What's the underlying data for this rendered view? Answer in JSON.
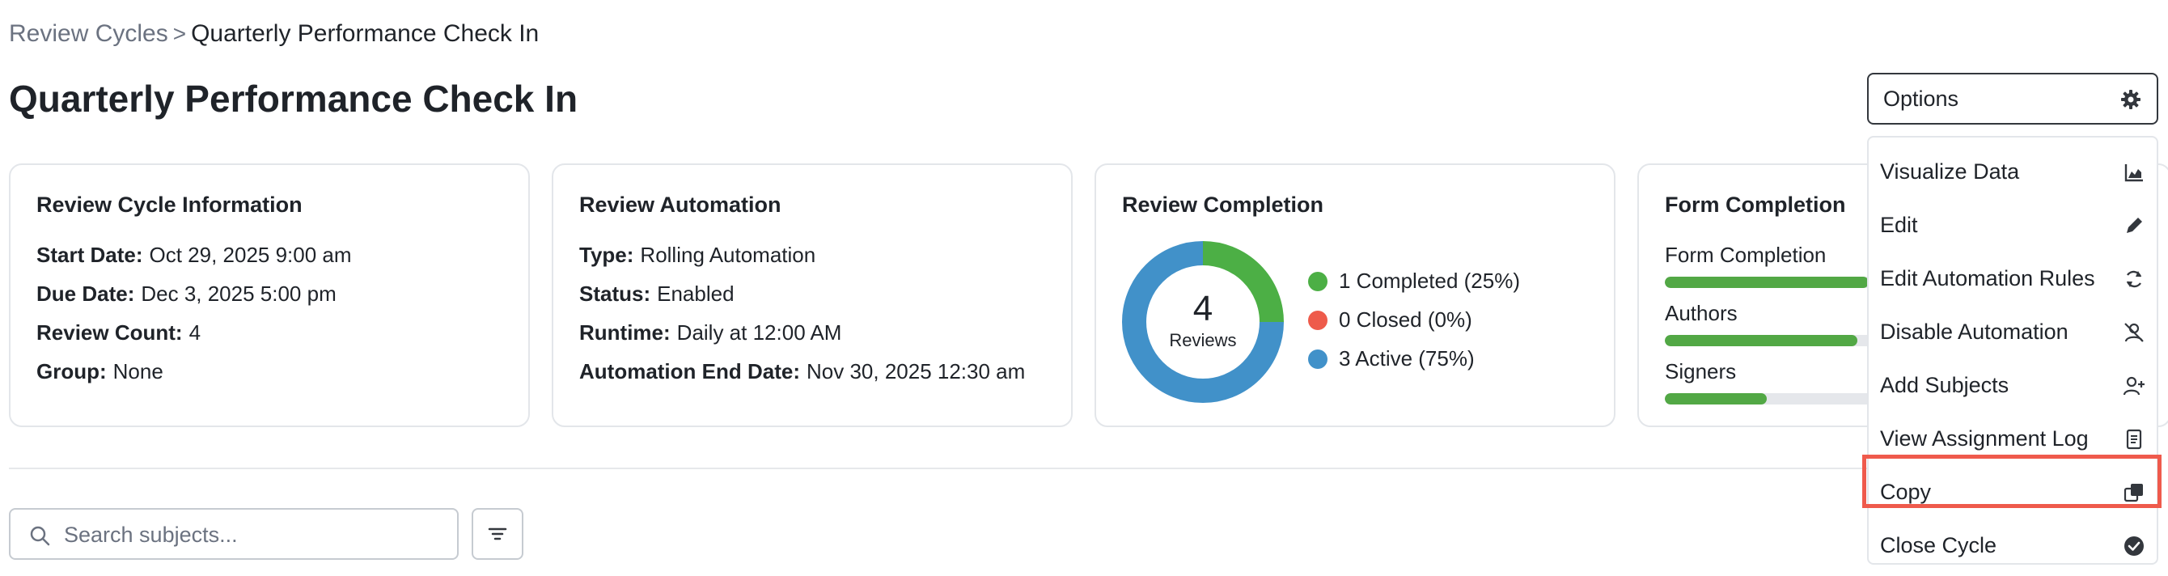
{
  "breadcrumb": {
    "parent": "Review Cycles",
    "separator": ">",
    "current": "Quarterly Performance Check In"
  },
  "page": {
    "title": "Quarterly Performance Check In"
  },
  "cards": {
    "info": {
      "title": "Review Cycle Information",
      "rows": [
        {
          "label": "Start Date:",
          "value": "Oct 29, 2025 9:00 am"
        },
        {
          "label": "Due Date:",
          "value": "Dec 3, 2025 5:00 pm"
        },
        {
          "label": "Review Count:",
          "value": "4"
        },
        {
          "label": "Group:",
          "value": "None"
        }
      ]
    },
    "automation": {
      "title": "Review Automation",
      "rows": [
        {
          "label": "Type:",
          "value": "Rolling Automation"
        },
        {
          "label": "Status:",
          "value": "Enabled"
        },
        {
          "label": "Runtime:",
          "value": "Daily at 12:00 AM"
        },
        {
          "label": "Automation End Date:",
          "value": "Nov 30, 2025 12:30 am"
        }
      ]
    },
    "completion": {
      "title": "Review Completion",
      "total": "4",
      "total_label": "Reviews",
      "legend": [
        {
          "label": "1 Completed (25%)",
          "count": 1,
          "color": "#4caf45"
        },
        {
          "label": "0 Closed (0%)",
          "count": 0,
          "color": "#ee5b4b"
        },
        {
          "label": "3 Active (75%)",
          "count": 3,
          "color": "#4191c9"
        }
      ]
    },
    "form": {
      "title": "Form Completion",
      "bars": [
        {
          "label": "Form Completion",
          "fraction": 0.9
        },
        {
          "label": "Authors",
          "fraction": 0.85
        },
        {
          "label": "Signers",
          "fraction": 0.45
        }
      ],
      "bar_color": "#52a845"
    }
  },
  "search": {
    "placeholder": "Search subjects...",
    "value": ""
  },
  "options": {
    "label": "Options",
    "icon": "gear-icon",
    "menu": [
      {
        "label": "Visualize Data",
        "icon": "area-chart-icon"
      },
      {
        "label": "Edit",
        "icon": "pencil-icon"
      },
      {
        "label": "Edit Automation Rules",
        "icon": "refresh-icon"
      },
      {
        "label": "Disable Automation",
        "icon": "user-off-icon"
      },
      {
        "label": "Add Subjects",
        "icon": "user-plus-icon"
      },
      {
        "label": "View Assignment Log",
        "icon": "document-icon"
      },
      {
        "label": "Copy",
        "icon": "copy-icon",
        "highlighted": true
      },
      {
        "label": "Close Cycle",
        "icon": "check-circle-icon"
      }
    ]
  },
  "colors": {
    "highlight": "#ef5a4c",
    "text": "#1f2329",
    "muted": "#6b7280",
    "border": "#e3e6ea"
  }
}
